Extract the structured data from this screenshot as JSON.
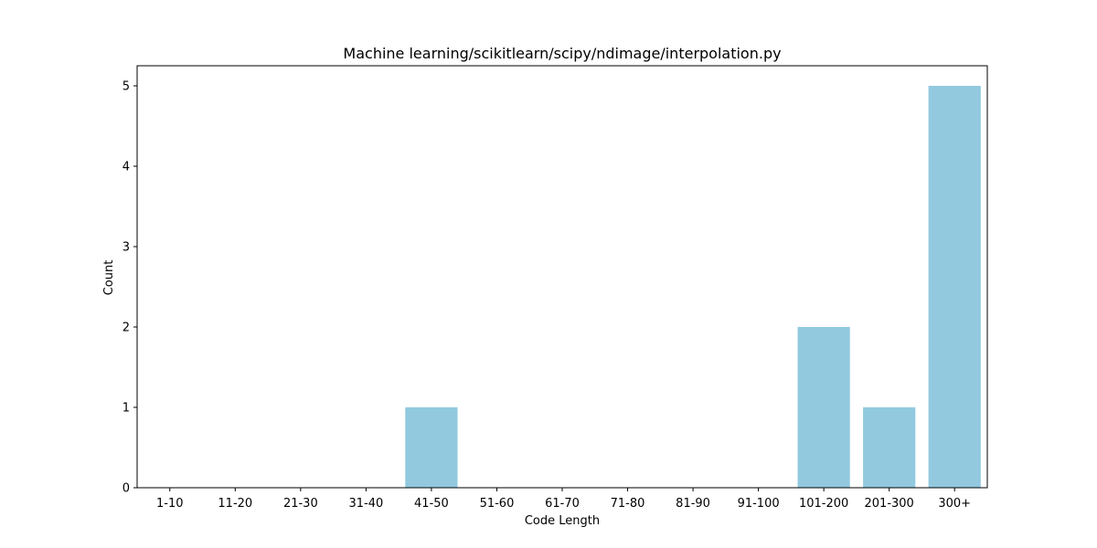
{
  "chart_data": {
    "type": "bar",
    "title": "Machine learning/scikitlearn/scipy/ndimage/interpolation.py",
    "xlabel": "Code Length",
    "ylabel": "Count",
    "categories": [
      "1-10",
      "11-20",
      "21-30",
      "31-40",
      "41-50",
      "51-60",
      "61-70",
      "71-80",
      "81-90",
      "91-100",
      "101-200",
      "201-300",
      "300+"
    ],
    "values": [
      0,
      0,
      0,
      0,
      1,
      0,
      0,
      0,
      0,
      0,
      2,
      1,
      5
    ],
    "ylim": [
      0,
      5.25
    ],
    "yticks": [
      0,
      1,
      2,
      3,
      4,
      5
    ],
    "bar_color": "#92c9df",
    "grid": false,
    "legend": "none"
  }
}
